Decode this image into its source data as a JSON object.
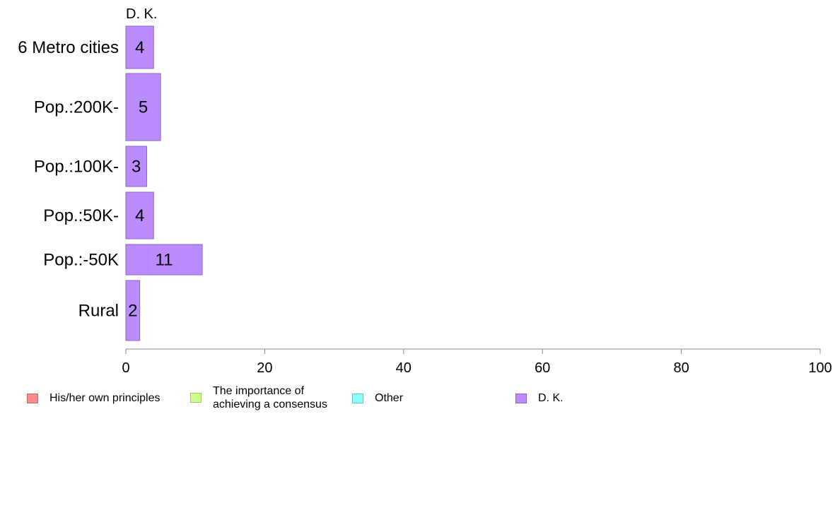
{
  "chart_data": {
    "type": "bar",
    "orientation": "horizontal",
    "stacked": true,
    "panel_title": "D. K.",
    "categories": [
      "6 Metro cities",
      "Pop.:200K-",
      "Pop.:100K-",
      "Pop.:50K-",
      "Pop.:-50K",
      "Rural"
    ],
    "series": [
      {
        "name": "His/her own principles",
        "color": "#ff8c8c",
        "border": "#c86464",
        "values": [
          0,
          0,
          0,
          0,
          0,
          0
        ]
      },
      {
        "name": "The importance of achieving a consensus",
        "color": "#ccff8c",
        "border": "#9ccc5c",
        "values": [
          0,
          0,
          0,
          0,
          0,
          0
        ]
      },
      {
        "name": "Other",
        "color": "#8cffff",
        "border": "#5cc8c8",
        "values": [
          0,
          0,
          0,
          0,
          0,
          0
        ]
      },
      {
        "name": "D. K.",
        "color": "#bb8cff",
        "border": "#8a64c8",
        "values": [
          4,
          5,
          3,
          4,
          11,
          2
        ]
      }
    ],
    "data_labels": [
      "4",
      "5",
      "3",
      "4",
      "11",
      "2"
    ],
    "xlim": [
      0,
      100
    ],
    "xticks": [
      0,
      20,
      40,
      60,
      80,
      100
    ],
    "grid": false,
    "legend_position": "bottom-left"
  },
  "legend": {
    "items": [
      {
        "lines": [
          "His/her own principles"
        ],
        "color": "#ff8c8c",
        "border": "#c86464"
      },
      {
        "lines": [
          "The importance of",
          "achieving a consensus"
        ],
        "color": "#ccff8c",
        "border": "#9ccc5c"
      },
      {
        "lines": [
          "Other"
        ],
        "color": "#8cffff",
        "border": "#5cc8c8"
      },
      {
        "lines": [
          "D. K."
        ],
        "color": "#bb8cff",
        "border": "#8a64c8"
      }
    ]
  }
}
